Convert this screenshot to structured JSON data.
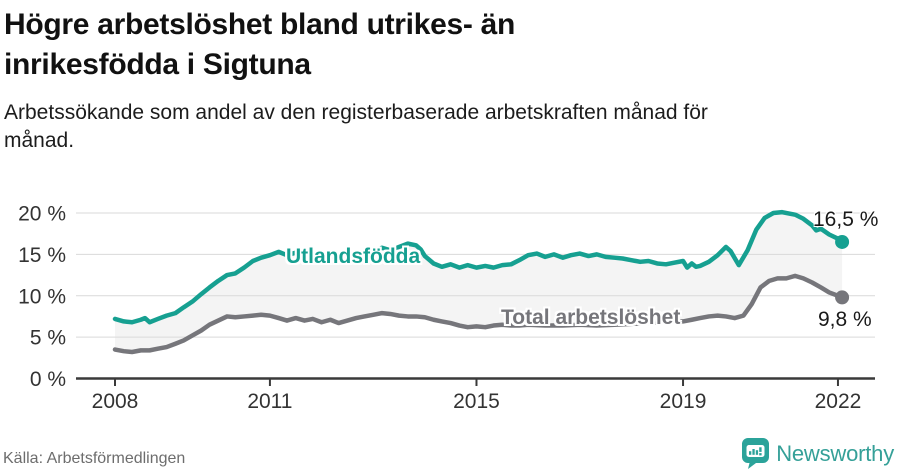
{
  "header": {
    "title_lines": [
      "Högre arbetslöshet bland utrikes- än",
      "inrikesfödda i Sigtuna"
    ],
    "subtitle_lines": [
      "Arbetssökande som andel av den registerbaserade arbetskraften månad för",
      "månad."
    ]
  },
  "footer": {
    "source": "Källa: Arbetsförmedlingen",
    "brand_name": "Newsworthy",
    "brand_icon": "newsworthy-chart-bubble-icon"
  },
  "chart_data": {
    "type": "line",
    "title": "Högre arbetslöshet bland utrikes- än inrikesfödda i Sigtuna",
    "xlabel": "",
    "ylabel": "",
    "grid": true,
    "band_fill_between_series": true,
    "x_axis": {
      "ticks": [
        2008,
        2011,
        2015,
        2019,
        2022
      ],
      "labels": [
        "2008",
        "2011",
        "2015",
        "2019",
        "2022"
      ],
      "range": [
        2008,
        2022.7
      ]
    },
    "y_axis": {
      "ticks": [
        0,
        5,
        10,
        15,
        20
      ],
      "labels": [
        "0 %",
        "5 %",
        "10 %",
        "15 %",
        "20 %"
      ],
      "range": [
        0,
        20
      ]
    },
    "colors": {
      "band": "#f4f4f4",
      "grid": "#d9d9d9",
      "axis": "#3a3a3a",
      "tick_text": "#333333",
      "value_label_text": "#191919",
      "accent_teal": "#16a091",
      "neutral_gray": "#76767b"
    },
    "series": [
      {
        "name": "Utlandsfödda",
        "color": "#16a091",
        "end_label": "16,5 %",
        "end_value": 16.5,
        "points": [
          [
            2008.0,
            7.2
          ],
          [
            2008.17,
            6.9
          ],
          [
            2008.33,
            6.8
          ],
          [
            2008.5,
            7.1
          ],
          [
            2008.58,
            7.3
          ],
          [
            2008.67,
            6.8
          ],
          [
            2008.83,
            7.2
          ],
          [
            2009.0,
            7.6
          ],
          [
            2009.17,
            7.9
          ],
          [
            2009.33,
            8.6
          ],
          [
            2009.5,
            9.3
          ],
          [
            2009.67,
            10.2
          ],
          [
            2009.83,
            11.0
          ],
          [
            2010.0,
            11.8
          ],
          [
            2010.17,
            12.5
          ],
          [
            2010.33,
            12.7
          ],
          [
            2010.5,
            13.4
          ],
          [
            2010.67,
            14.2
          ],
          [
            2010.83,
            14.6
          ],
          [
            2011.0,
            14.9
          ],
          [
            2011.17,
            15.3
          ],
          [
            2011.33,
            14.9
          ],
          [
            2011.5,
            15.2
          ],
          [
            2011.67,
            14.8
          ],
          [
            2011.83,
            15.0
          ],
          [
            2012.0,
            15.2
          ],
          [
            2012.17,
            14.8
          ],
          [
            2012.33,
            14.6
          ],
          [
            2012.5,
            14.9
          ],
          [
            2012.67,
            15.1
          ],
          [
            2012.83,
            14.8
          ],
          [
            2013.0,
            15.2
          ],
          [
            2013.17,
            15.8
          ],
          [
            2013.33,
            15.5
          ],
          [
            2013.5,
            15.9
          ],
          [
            2013.67,
            16.3
          ],
          [
            2013.83,
            16.1
          ],
          [
            2013.92,
            15.6
          ],
          [
            2014.0,
            14.8
          ],
          [
            2014.17,
            13.9
          ],
          [
            2014.33,
            13.5
          ],
          [
            2014.5,
            13.8
          ],
          [
            2014.67,
            13.4
          ],
          [
            2014.83,
            13.7
          ],
          [
            2015.0,
            13.4
          ],
          [
            2015.17,
            13.6
          ],
          [
            2015.33,
            13.4
          ],
          [
            2015.5,
            13.7
          ],
          [
            2015.67,
            13.8
          ],
          [
            2015.83,
            14.3
          ],
          [
            2016.0,
            14.9
          ],
          [
            2016.17,
            15.1
          ],
          [
            2016.33,
            14.7
          ],
          [
            2016.5,
            15.0
          ],
          [
            2016.67,
            14.6
          ],
          [
            2016.83,
            14.9
          ],
          [
            2017.0,
            15.1
          ],
          [
            2017.17,
            14.8
          ],
          [
            2017.33,
            15.0
          ],
          [
            2017.5,
            14.7
          ],
          [
            2017.67,
            14.6
          ],
          [
            2017.83,
            14.5
          ],
          [
            2018.0,
            14.3
          ],
          [
            2018.17,
            14.1
          ],
          [
            2018.33,
            14.2
          ],
          [
            2018.5,
            13.9
          ],
          [
            2018.67,
            13.8
          ],
          [
            2018.83,
            14.0
          ],
          [
            2019.0,
            14.2
          ],
          [
            2019.08,
            13.4
          ],
          [
            2019.17,
            13.9
          ],
          [
            2019.25,
            13.5
          ],
          [
            2019.33,
            13.6
          ],
          [
            2019.5,
            14.1
          ],
          [
            2019.67,
            14.9
          ],
          [
            2019.83,
            15.9
          ],
          [
            2019.92,
            15.4
          ],
          [
            2020.08,
            13.7
          ],
          [
            2020.25,
            15.5
          ],
          [
            2020.42,
            18.0
          ],
          [
            2020.58,
            19.4
          ],
          [
            2020.75,
            20.0
          ],
          [
            2020.92,
            20.1
          ],
          [
            2021.08,
            19.9
          ],
          [
            2021.17,
            19.8
          ],
          [
            2021.33,
            19.3
          ],
          [
            2021.5,
            18.5
          ],
          [
            2021.58,
            17.9
          ],
          [
            2021.67,
            18.1
          ],
          [
            2021.83,
            17.4
          ],
          [
            2022.0,
            16.9
          ],
          [
            2022.08,
            16.5
          ]
        ]
      },
      {
        "name": "Total arbetslöshet",
        "color": "#76767b",
        "end_label": "9,8 %",
        "end_value": 9.8,
        "points": [
          [
            2008.0,
            3.5
          ],
          [
            2008.17,
            3.3
          ],
          [
            2008.33,
            3.2
          ],
          [
            2008.5,
            3.4
          ],
          [
            2008.67,
            3.4
          ],
          [
            2008.83,
            3.6
          ],
          [
            2009.0,
            3.8
          ],
          [
            2009.17,
            4.2
          ],
          [
            2009.33,
            4.6
          ],
          [
            2009.5,
            5.2
          ],
          [
            2009.67,
            5.8
          ],
          [
            2009.83,
            6.5
          ],
          [
            2010.0,
            7.0
          ],
          [
            2010.17,
            7.5
          ],
          [
            2010.33,
            7.4
          ],
          [
            2010.5,
            7.5
          ],
          [
            2010.67,
            7.6
          ],
          [
            2010.83,
            7.7
          ],
          [
            2011.0,
            7.6
          ],
          [
            2011.17,
            7.3
          ],
          [
            2011.33,
            7.0
          ],
          [
            2011.5,
            7.3
          ],
          [
            2011.67,
            7.0
          ],
          [
            2011.83,
            7.2
          ],
          [
            2012.0,
            6.8
          ],
          [
            2012.17,
            7.1
          ],
          [
            2012.33,
            6.7
          ],
          [
            2012.5,
            7.0
          ],
          [
            2012.67,
            7.3
          ],
          [
            2012.83,
            7.5
          ],
          [
            2013.0,
            7.7
          ],
          [
            2013.17,
            7.9
          ],
          [
            2013.33,
            7.8
          ],
          [
            2013.5,
            7.6
          ],
          [
            2013.67,
            7.5
          ],
          [
            2013.83,
            7.5
          ],
          [
            2014.0,
            7.4
          ],
          [
            2014.17,
            7.1
          ],
          [
            2014.33,
            6.9
          ],
          [
            2014.5,
            6.7
          ],
          [
            2014.67,
            6.4
          ],
          [
            2014.83,
            6.2
          ],
          [
            2015.0,
            6.3
          ],
          [
            2015.17,
            6.2
          ],
          [
            2015.33,
            6.4
          ],
          [
            2015.5,
            6.5
          ],
          [
            2015.67,
            6.4
          ],
          [
            2015.83,
            6.4
          ],
          [
            2016.0,
            6.5
          ],
          [
            2016.33,
            6.4
          ],
          [
            2016.67,
            6.4
          ],
          [
            2017.0,
            6.5
          ],
          [
            2017.33,
            6.4
          ],
          [
            2017.67,
            6.5
          ],
          [
            2018.0,
            6.6
          ],
          [
            2018.33,
            6.7
          ],
          [
            2018.67,
            6.8
          ],
          [
            2019.0,
            6.9
          ],
          [
            2019.17,
            7.1
          ],
          [
            2019.33,
            7.3
          ],
          [
            2019.5,
            7.5
          ],
          [
            2019.67,
            7.6
          ],
          [
            2019.83,
            7.5
          ],
          [
            2020.0,
            7.3
          ],
          [
            2020.17,
            7.6
          ],
          [
            2020.33,
            9.0
          ],
          [
            2020.5,
            11.0
          ],
          [
            2020.67,
            11.8
          ],
          [
            2020.83,
            12.1
          ],
          [
            2021.0,
            12.1
          ],
          [
            2021.17,
            12.4
          ],
          [
            2021.33,
            12.1
          ],
          [
            2021.5,
            11.6
          ],
          [
            2021.67,
            11.0
          ],
          [
            2021.83,
            10.4
          ],
          [
            2022.0,
            10.0
          ],
          [
            2022.08,
            9.8
          ]
        ]
      }
    ]
  }
}
